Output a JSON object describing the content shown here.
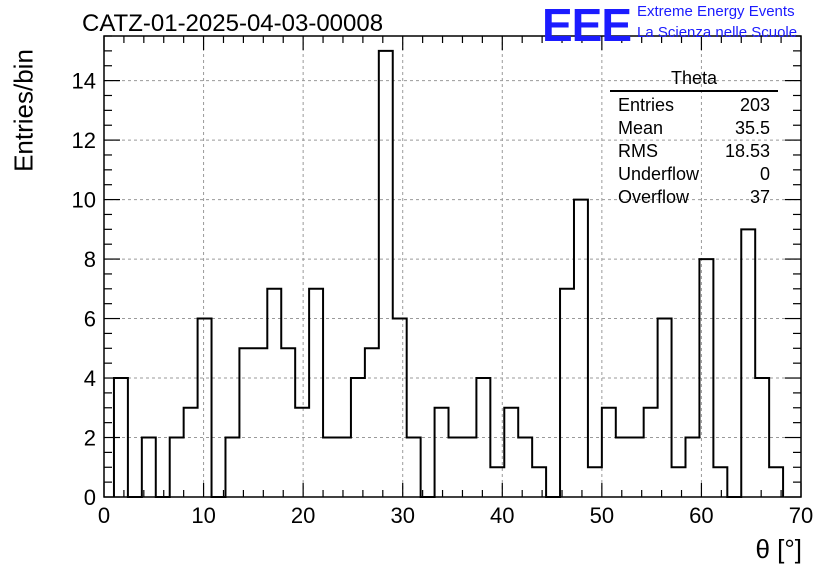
{
  "header": {
    "title": "CATZ-01-2025-04-03-00008",
    "logo_text": "EEE",
    "logo_line1": "Extreme Energy Events",
    "logo_line2": "La Scienza nelle Scuole",
    "brand_color": "#1b1bff"
  },
  "stats_box": {
    "name": "Theta",
    "rows": [
      {
        "label": "Entries",
        "value": "203"
      },
      {
        "label": "Mean",
        "value": "35.5"
      },
      {
        "label": "RMS",
        "value": "18.53"
      },
      {
        "label": "Underflow",
        "value": "0"
      },
      {
        "label": "Overflow",
        "value": "37"
      }
    ]
  },
  "chart_data": {
    "type": "bar",
    "histogram": true,
    "bin_width": 1.4,
    "bin_edges_start": 1.0,
    "values": [
      4,
      0,
      2,
      0,
      2,
      3,
      6,
      0,
      2,
      5,
      5,
      7,
      5,
      3,
      7,
      2,
      2,
      4,
      5,
      15,
      6,
      2,
      0,
      3,
      2,
      2,
      4,
      1,
      3,
      2,
      1,
      0,
      7,
      10,
      1,
      3,
      2,
      2,
      3,
      6,
      1,
      2,
      8,
      1,
      0,
      9,
      4,
      1
    ],
    "xlabel": "θ [°]",
    "ylabel": "Entries/bin",
    "xlim": [
      0,
      70
    ],
    "ylim": [
      0,
      15.5
    ],
    "x_ticks": [
      "0",
      "10",
      "20",
      "30",
      "40",
      "50",
      "60",
      "70"
    ],
    "y_ticks": [
      "0",
      "2",
      "4",
      "6",
      "8",
      "10",
      "12",
      "14"
    ],
    "grid": true
  }
}
